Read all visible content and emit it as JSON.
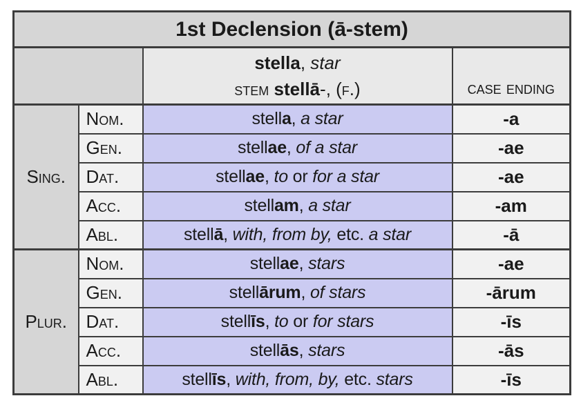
{
  "title": "1st Declension (ā-stem)",
  "colors": {
    "dark_gray_cell": "#d6d6d6",
    "header_cell": "#e9e9e9",
    "light_cell": "#f1f1f1",
    "lavender_cell": "#cbcbf2",
    "border": "#3c3c3c",
    "text": "#1a1a1a"
  },
  "header": {
    "lexeme_line": [
      {
        "t": "stella",
        "c": "b"
      },
      {
        "t": ", "
      },
      {
        "t": "star",
        "c": "i"
      }
    ],
    "stem_line": [
      {
        "t": "stem ",
        "c": "sc"
      },
      {
        "t": "stellā",
        "c": "b"
      },
      {
        "t": "-, "
      },
      {
        "t": "(f.)",
        "c": "sc"
      }
    ],
    "case_ending_label": "case ending"
  },
  "groups": [
    {
      "label": "Sing."
    },
    {
      "label": "Plur."
    }
  ],
  "rows": [
    {
      "case_label": "Nom.",
      "form": [
        {
          "t": "stell"
        },
        {
          "t": "a",
          "c": "b"
        },
        {
          "t": ", "
        },
        {
          "t": "a star",
          "c": "i"
        }
      ],
      "ending": "-a"
    },
    {
      "case_label": "Gen.",
      "form": [
        {
          "t": "stell"
        },
        {
          "t": "ae",
          "c": "b"
        },
        {
          "t": ", "
        },
        {
          "t": "of a star",
          "c": "i"
        }
      ],
      "ending": "-ae"
    },
    {
      "case_label": "Dat.",
      "form": [
        {
          "t": "stell"
        },
        {
          "t": "ae",
          "c": "b"
        },
        {
          "t": ", "
        },
        {
          "t": "to",
          "c": "i"
        },
        {
          "t": " or "
        },
        {
          "t": "for a star",
          "c": "i"
        }
      ],
      "ending": "-ae"
    },
    {
      "case_label": "Acc.",
      "form": [
        {
          "t": "stell"
        },
        {
          "t": "am",
          "c": "b"
        },
        {
          "t": ", "
        },
        {
          "t": "a star",
          "c": "i"
        }
      ],
      "ending": "-am"
    },
    {
      "case_label": "Abl.",
      "form": [
        {
          "t": "stell"
        },
        {
          "t": "ā",
          "c": "b"
        },
        {
          "t": ", "
        },
        {
          "t": "with, from by,",
          "c": "i"
        },
        {
          "t": " etc. "
        },
        {
          "t": "a star",
          "c": "i"
        }
      ],
      "ending": "-ā"
    },
    {
      "case_label": "Nom.",
      "form": [
        {
          "t": "stell"
        },
        {
          "t": "ae",
          "c": "b"
        },
        {
          "t": ", "
        },
        {
          "t": "stars",
          "c": "i"
        }
      ],
      "ending": "-ae"
    },
    {
      "case_label": "Gen.",
      "form": [
        {
          "t": "stell"
        },
        {
          "t": "ārum",
          "c": "b"
        },
        {
          "t": ", "
        },
        {
          "t": "of stars",
          "c": "i"
        }
      ],
      "ending": "-ārum"
    },
    {
      "case_label": "Dat.",
      "form": [
        {
          "t": "stell"
        },
        {
          "t": "īs",
          "c": "b"
        },
        {
          "t": ", "
        },
        {
          "t": "to",
          "c": "i"
        },
        {
          "t": " or "
        },
        {
          "t": "for stars",
          "c": "i"
        }
      ],
      "ending": "-īs"
    },
    {
      "case_label": "Acc.",
      "form": [
        {
          "t": "stell"
        },
        {
          "t": "ās",
          "c": "b"
        },
        {
          "t": ", "
        },
        {
          "t": "stars",
          "c": "i"
        }
      ],
      "ending": "-ās"
    },
    {
      "case_label": "Abl.",
      "form": [
        {
          "t": "stell"
        },
        {
          "t": "īs",
          "c": "b"
        },
        {
          "t": ", "
        },
        {
          "t": "with, from, by,",
          "c": "i"
        },
        {
          "t": " etc. "
        },
        {
          "t": "stars",
          "c": "i"
        }
      ],
      "ending": "-īs"
    }
  ]
}
